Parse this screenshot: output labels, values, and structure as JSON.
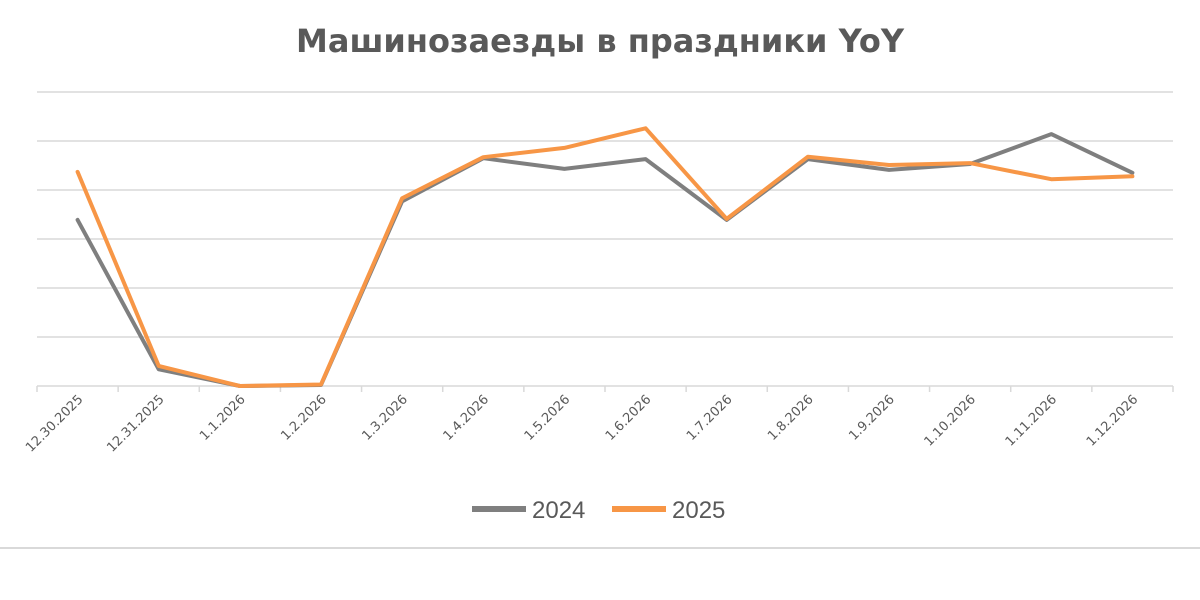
{
  "chart_data": {
    "type": "line",
    "title": "Машинозаезды в праздники YoY",
    "categories": [
      "12.30.2025",
      "12.31.2025",
      "1.1.2026",
      "1.2.2026",
      "1.3.2026",
      "1.4.2026",
      "1.5.2026",
      "1.6.2026",
      "1.7.2026",
      "1.8.2026",
      "1.9.2026",
      "1.10.2026",
      "1.11.2026",
      "1.12.2026"
    ],
    "ylim": [
      0,
      6
    ],
    "grid": true,
    "legend_position": "bottom",
    "y_tick_labels_shown": false,
    "series": [
      {
        "name": "2024",
        "color": "#7f7f7f",
        "values": [
          3.39,
          0.34,
          0.0,
          0.02,
          3.77,
          4.65,
          4.43,
          4.63,
          3.39,
          4.63,
          4.41,
          4.53,
          5.14,
          4.35
        ]
      },
      {
        "name": "2025",
        "color": "#f79646",
        "values": [
          4.37,
          0.41,
          0.0,
          0.03,
          3.83,
          4.67,
          4.86,
          5.26,
          3.41,
          4.68,
          4.51,
          4.55,
          4.22,
          4.28
        ]
      }
    ]
  }
}
